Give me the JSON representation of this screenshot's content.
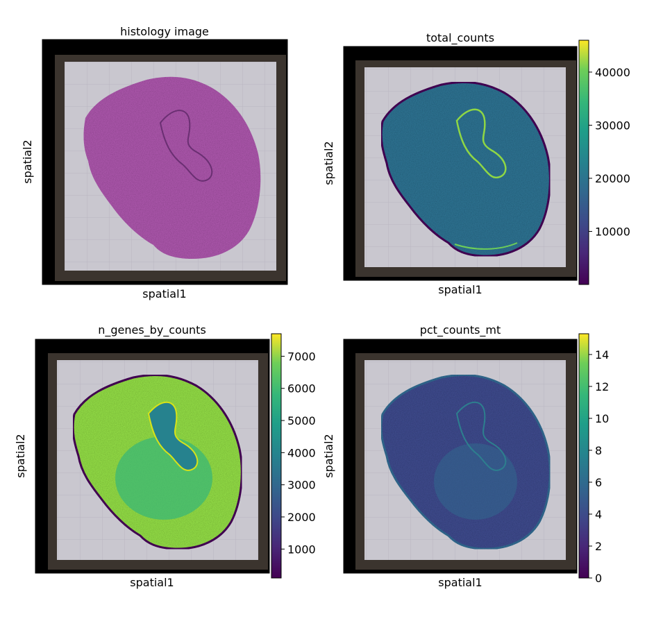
{
  "figure": {
    "panels": [
      {
        "title": "histology image",
        "xlabel": "spatial1",
        "ylabel": "spatial2",
        "colorbar": null
      },
      {
        "title": "total_counts",
        "xlabel": "spatial1",
        "ylabel": "spatial2",
        "colorbar": {
          "min": 0,
          "max": 46000,
          "ticks": [
            "10000",
            "20000",
            "30000",
            "40000"
          ],
          "tick_values": [
            10000,
            20000,
            30000,
            40000
          ]
        }
      },
      {
        "title": "n_genes_by_counts",
        "xlabel": "spatial1",
        "ylabel": "spatial2",
        "colorbar": {
          "min": 100,
          "max": 7700,
          "ticks": [
            "1000",
            "2000",
            "3000",
            "4000",
            "5000",
            "6000",
            "7000"
          ],
          "tick_values": [
            1000,
            2000,
            3000,
            4000,
            5000,
            6000,
            7000
          ]
        }
      },
      {
        "title": "pct_counts_mt",
        "xlabel": "spatial1",
        "ylabel": "spatial2",
        "colorbar": {
          "min": 0,
          "max": 15.3,
          "ticks": [
            "0",
            "2",
            "4",
            "6",
            "8",
            "10",
            "12",
            "14"
          ],
          "tick_values": [
            0,
            2,
            4,
            6,
            8,
            10,
            12,
            14
          ]
        }
      }
    ],
    "colormap": "viridis",
    "histology_color": "#a855a8"
  },
  "chart_data": [
    {
      "type": "heatmap",
      "title": "histology image",
      "xlabel": "spatial1",
      "ylabel": "spatial2"
    },
    {
      "type": "heatmap",
      "title": "total_counts",
      "xlabel": "spatial1",
      "ylabel": "spatial2",
      "colorbar_range": [
        0,
        46000
      ],
      "colorbar_ticks": [
        10000,
        20000,
        30000,
        40000
      ]
    },
    {
      "type": "heatmap",
      "title": "n_genes_by_counts",
      "xlabel": "spatial1",
      "ylabel": "spatial2",
      "colorbar_range": [
        100,
        7700
      ],
      "colorbar_ticks": [
        1000,
        2000,
        3000,
        4000,
        5000,
        6000,
        7000
      ]
    },
    {
      "type": "heatmap",
      "title": "pct_counts_mt",
      "xlabel": "spatial1",
      "ylabel": "spatial2",
      "colorbar_range": [
        0,
        15.3
      ],
      "colorbar_ticks": [
        0,
        2,
        4,
        6,
        8,
        10,
        12,
        14
      ]
    }
  ]
}
